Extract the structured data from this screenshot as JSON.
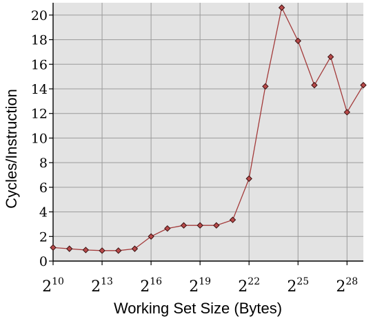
{
  "chart_data": {
    "type": "line",
    "xlabel": "Working Set Size (Bytes)",
    "ylabel": "Cycles/Instruction",
    "x_scale": "log2",
    "x_tick_base": "2",
    "x_tick_exponents": [
      "10",
      "13",
      "16",
      "19",
      "22",
      "25",
      "28"
    ],
    "y_ticks": [
      "0",
      "2",
      "4",
      "6",
      "8",
      "10",
      "12",
      "14",
      "16",
      "18",
      "20"
    ],
    "xlim": [
      10,
      29
    ],
    "ylim": [
      0,
      21
    ],
    "grid": true,
    "series": [
      {
        "x_exponent": [
          10,
          11,
          12,
          13,
          14,
          15,
          16,
          17,
          18,
          19,
          20,
          21,
          22,
          23,
          24,
          25,
          26,
          27,
          28,
          29
        ],
        "values": [
          1.1,
          1.0,
          0.9,
          0.85,
          0.85,
          1.0,
          2.0,
          2.65,
          2.9,
          2.9,
          2.9,
          3.35,
          6.7,
          14.2,
          20.6,
          17.9,
          14.3,
          16.6,
          12.1,
          14.3
        ]
      }
    ],
    "colors": {
      "plot_background": "#e3e3e3",
      "grid": "#9a9a9a",
      "line": "#a33a3a",
      "marker_fill": "#b84a4a",
      "marker_stroke": "#3a1010"
    }
  }
}
